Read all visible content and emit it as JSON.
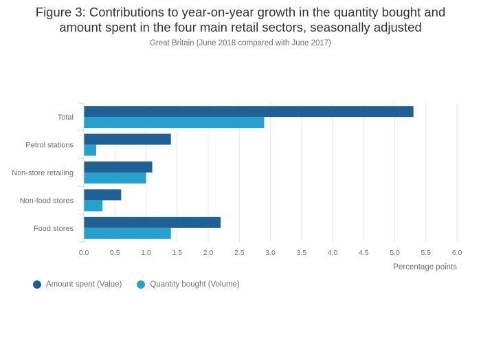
{
  "chart_data": {
    "type": "bar",
    "orientation": "horizontal",
    "title": "Figure 3: Contributions to year-on-year growth in the quantity bought and amount spent in the four main retail sectors, seasonally adjusted",
    "title_lines": [
      "Figure 3: Contributions to year-on-year growth in the quantity bought and",
      "amount spent in the four main retail sectors, seasonally adjusted"
    ],
    "subtitle": "Great Britain (June 2018 compared with June 2017)",
    "categories": [
      "Total",
      "Petrol stations",
      "Non-store retailing",
      "Non-food stores",
      "Food stores"
    ],
    "series": [
      {
        "name": "Amount spent (Value)",
        "color": "#206095",
        "values": [
          5.3,
          1.4,
          1.1,
          0.6,
          2.2
        ]
      },
      {
        "name": "Quantity bought (Volume)",
        "color": "#27a0cc",
        "values": [
          2.9,
          0.2,
          1.0,
          0.3,
          1.4
        ]
      }
    ],
    "xlabel": "Percentage points",
    "ylabel": "",
    "xlim": [
      0,
      6
    ],
    "xticks": [
      "0.0",
      "0.5",
      "1.0",
      "1.5",
      "2.0",
      "2.5",
      "3.0",
      "3.5",
      "4.0",
      "4.5",
      "5.0",
      "5.5",
      "6.0"
    ],
    "grid": true,
    "legend_position": "bottom-left"
  }
}
